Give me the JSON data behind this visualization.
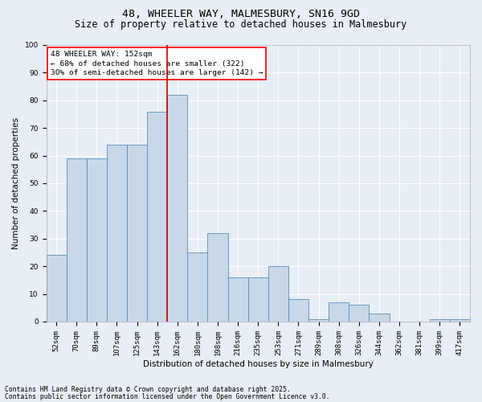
{
  "title_line1": "48, WHEELER WAY, MALMESBURY, SN16 9GD",
  "title_line2": "Size of property relative to detached houses in Malmesbury",
  "xlabel": "Distribution of detached houses by size in Malmesbury",
  "ylabel": "Number of detached properties",
  "categories": [
    "52sqm",
    "70sqm",
    "89sqm",
    "107sqm",
    "125sqm",
    "143sqm",
    "162sqm",
    "180sqm",
    "198sqm",
    "216sqm",
    "235sqm",
    "253sqm",
    "271sqm",
    "289sqm",
    "308sqm",
    "326sqm",
    "344sqm",
    "362sqm",
    "381sqm",
    "399sqm",
    "417sqm"
  ],
  "values": [
    24,
    59,
    59,
    64,
    64,
    76,
    82,
    25,
    32,
    16,
    16,
    20,
    8,
    1,
    7,
    6,
    3,
    0,
    0,
    1,
    1
  ],
  "bar_color": "#c8d8e8",
  "bar_edge_color": "#5b8db8",
  "vline_color": "#cc0000",
  "vline_x_index": 6,
  "annotation_text": "48 WHEELER WAY: 152sqm\n← 68% of detached houses are smaller (322)\n30% of semi-detached houses are larger (142) →",
  "background_color": "#e8eef5",
  "plot_bg_color": "#e8eef5",
  "grid_color": "#ffffff",
  "ylim": [
    0,
    100
  ],
  "yticks": [
    0,
    10,
    20,
    30,
    40,
    50,
    60,
    70,
    80,
    90,
    100
  ],
  "footnote_line1": "Contains HM Land Registry data © Crown copyright and database right 2025.",
  "footnote_line2": "Contains public sector information licensed under the Open Government Licence v3.0.",
  "title_fontsize": 9.5,
  "subtitle_fontsize": 8.5,
  "ylabel_fontsize": 7.5,
  "xlabel_fontsize": 7.5,
  "tick_fontsize": 6.5,
  "annotation_fontsize": 6.8,
  "footnote_fontsize": 5.8
}
